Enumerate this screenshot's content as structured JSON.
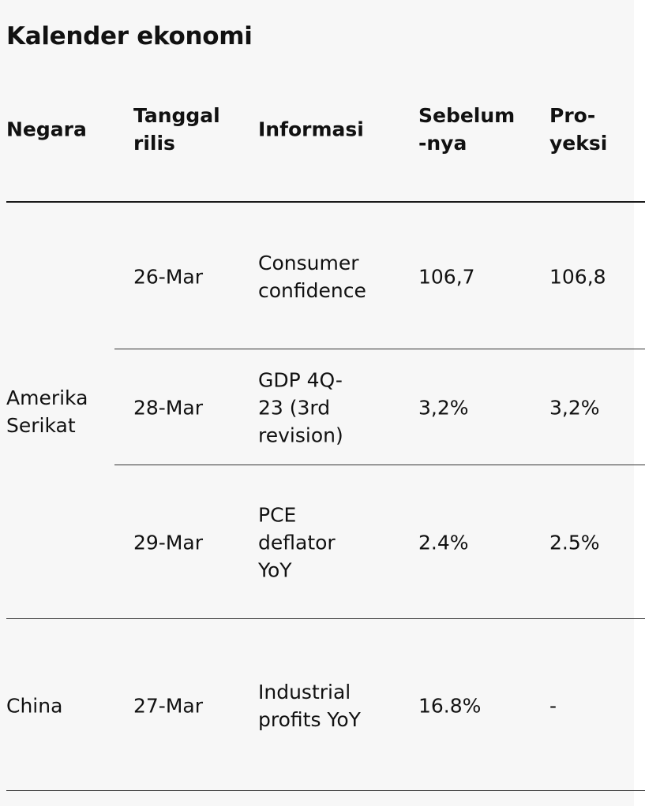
{
  "title": "Kalender ekonomi",
  "headers": {
    "negara": "Negara",
    "tanggal": "Tanggal\nrilis",
    "informasi": "Informasi",
    "sebelumnya": "Sebelum\n-nya",
    "proyeksi": "Pro-\nyeksi"
  },
  "groups": [
    {
      "country": "Amerika\nSerikat",
      "rows": [
        {
          "date": "26-Mar",
          "info": "Consumer\nconfidence",
          "previous": "106,7",
          "projection": "106,8"
        },
        {
          "date": "28-Mar",
          "info": "GDP 4Q-\n23 (3rd\nrevision)",
          "previous": "3,2%",
          "projection": "3,2%"
        },
        {
          "date": "29-Mar",
          "info": "PCE\ndeflator\nYoY",
          "previous": "2.4%",
          "projection": "2.5%"
        }
      ]
    },
    {
      "country": "China",
      "rows": [
        {
          "date": "27-Mar",
          "info": "Industrial\nprofits YoY",
          "previous": "16.8%",
          "projection": "-"
        }
      ]
    }
  ]
}
